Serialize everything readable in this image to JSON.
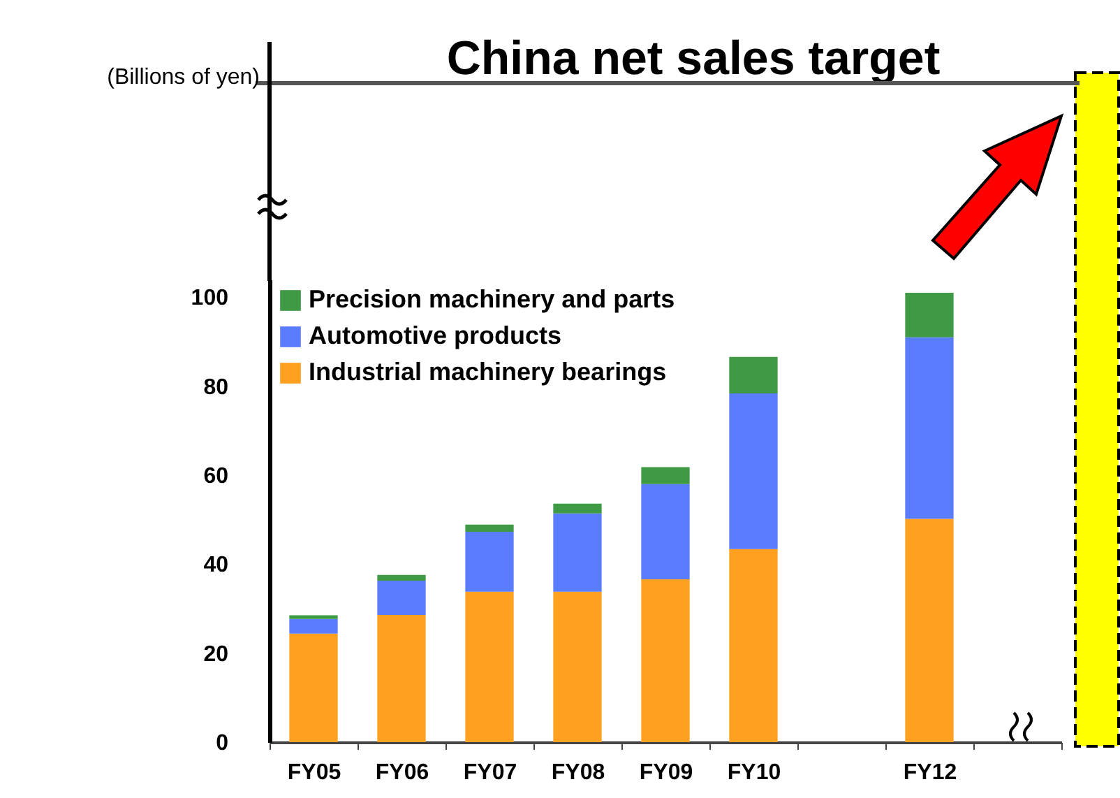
{
  "chart_data": {
    "type": "bar",
    "title": "China net sales target",
    "annotations": [
      "(Billions of yen)"
    ],
    "categories": [
      "FY05",
      "FY06",
      "FY07",
      "FY08",
      "FY09",
      "FY10",
      null,
      "FY12",
      null
    ],
    "stacked": true,
    "series": [
      {
        "name": "Industrial machinery bearings",
        "color": "#ffa020",
        "values": [
          24.4,
          28.6,
          33.8,
          33.8,
          36.6,
          43.4,
          null,
          50.2,
          null
        ]
      },
      {
        "name": "Automotive products",
        "color": "#5a7cff",
        "values": [
          3.3,
          7.7,
          13.5,
          17.6,
          21.4,
          35.0,
          null,
          40.8,
          null
        ]
      },
      {
        "name": "Precision machinery and parts",
        "color": "#3f9a45",
        "values": [
          0.8,
          1.3,
          1.6,
          2.2,
          3.8,
          8.2,
          null,
          10.0,
          null
        ]
      }
    ],
    "ylim": [
      0,
      104
    ],
    "yticks": [
      0,
      20,
      40,
      60,
      80,
      100
    ],
    "legend": "top left"
  }
}
